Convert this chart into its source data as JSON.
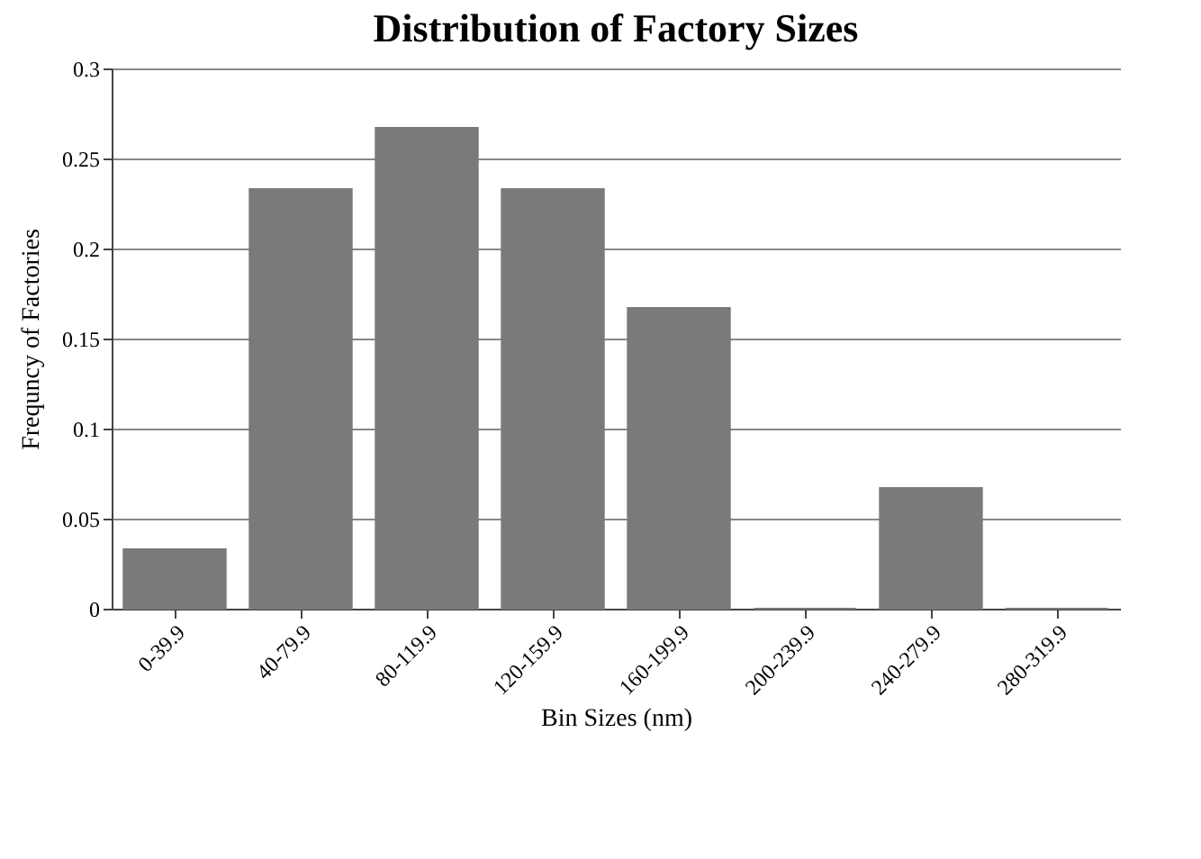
{
  "chart_data": {
    "type": "bar",
    "title": "Distribution of Factory Sizes",
    "xlabel": "Bin Sizes (nm)",
    "ylabel": "Frequncy of Factories",
    "categories": [
      "0-39.9",
      "40-79.9",
      "80-119.9",
      "120-159.9",
      "160-199.9",
      "200-239.9",
      "240-279.9",
      "280-319.9"
    ],
    "values": [
      0.033,
      0.233,
      0.267,
      0.233,
      0.167,
      0,
      0.067,
      0
    ],
    "color": "#7a7a7a",
    "ylim": [
      0,
      0.3
    ],
    "yticks": [
      0,
      0.05,
      0.1,
      0.15,
      0.2,
      0.25,
      0.3
    ],
    "grid": "y"
  }
}
